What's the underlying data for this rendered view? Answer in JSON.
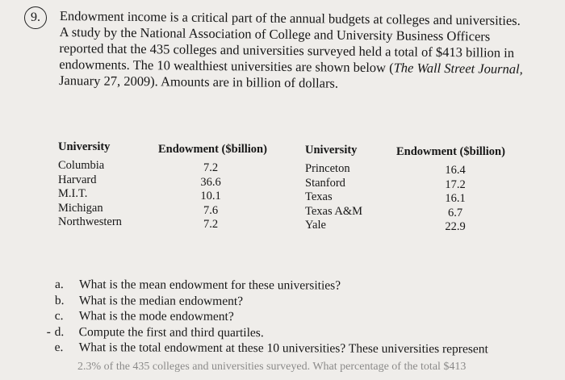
{
  "question_number": "9.",
  "intro_lines": [
    "Endowment income is a critical part of the annual budgets at colleges and universities.",
    "A study by the National Association of College and University Business Officers",
    "reported that the 435 colleges and universities surveyed held a total of $413 billion in",
    "endowments. The 10 wealthiest universities are shown below ("
  ],
  "source_title": "The Wall Street Journal,",
  "intro_last_line": "January 27, 2009). Amounts are in billion of dollars.",
  "table": {
    "left": {
      "university_header": "University",
      "endowment_header": "Endowment ($billion)",
      "universities": [
        "Columbia",
        "Harvard",
        "M.I.T.",
        "Michigan",
        "Northwestern"
      ],
      "endowments": [
        "7.2",
        "36.6",
        "10.1",
        "7.6",
        "7.2"
      ]
    },
    "right": {
      "university_header": "University",
      "endowment_header": "Endowment ($billion)",
      "universities": [
        "Princeton",
        "Stanford",
        "Texas",
        "Texas A&M",
        "Yale"
      ],
      "endowments": [
        "16.4",
        "17.2",
        "16.1",
        "6.7",
        "22.9"
      ]
    }
  },
  "questions": [
    {
      "letter": "a.",
      "text": "What is the mean endowment for these universities?"
    },
    {
      "letter": "b.",
      "text": "What is the median endowment?"
    },
    {
      "letter": "c.",
      "text": "What is the mode endowment?"
    },
    {
      "letter": "d.",
      "text": "Compute the first and third quartiles."
    },
    {
      "letter": "e.",
      "text": "What is the total endowment at these 10 universities? These universities represent"
    }
  ],
  "cutoff_line": "2.3% of the 435 colleges and universities surveyed. What percentage of the total $413"
}
